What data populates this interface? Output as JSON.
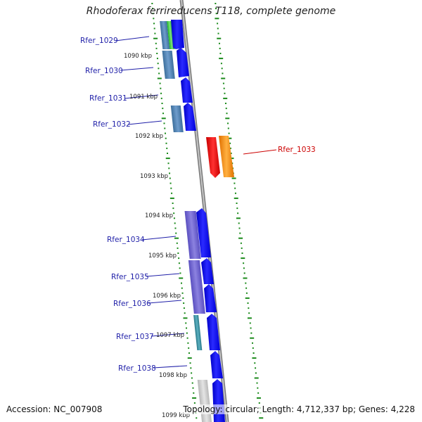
{
  "title": "Rhodoferax ferrireducens T118, complete genome",
  "footer": {
    "accession": "Accession: NC_007908",
    "summary": "Topology: circular; Length: 4,712,337 bp; Genes: 4,228"
  },
  "colors": {
    "backbone": "#8a8a8a",
    "label_blue": "#1f1fa8",
    "label_red": "#cc0000",
    "strand_plus": "#0000ee",
    "strand_minus": "#4a7fb0",
    "highlight_red": "#ee0000",
    "highlight_orange": "#ff8c00",
    "ticks": "#1a8a1a"
  },
  "kbp_labels": [
    "1090 kbp",
    "1091 kbp",
    "1092 kbp",
    "1093 kbp",
    "1094 kbp",
    "1095 kbp",
    "1096 kbp",
    "1097 kbp",
    "1098 kbp",
    "1099 kbp"
  ],
  "genes": [
    {
      "name": "Rfer_1029",
      "color": "blue"
    },
    {
      "name": "Rfer_1030",
      "color": "blue"
    },
    {
      "name": "Rfer_1031",
      "color": "blue"
    },
    {
      "name": "Rfer_1032",
      "color": "blue"
    },
    {
      "name": "Rfer_1033",
      "color": "red"
    },
    {
      "name": "Rfer_1034",
      "color": "blue"
    },
    {
      "name": "Rfer_1035",
      "color": "blue"
    },
    {
      "name": "Rfer_1036",
      "color": "blue"
    },
    {
      "name": "Rfer_1037",
      "color": "blue"
    },
    {
      "name": "Rfer_1038",
      "color": "blue"
    }
  ]
}
